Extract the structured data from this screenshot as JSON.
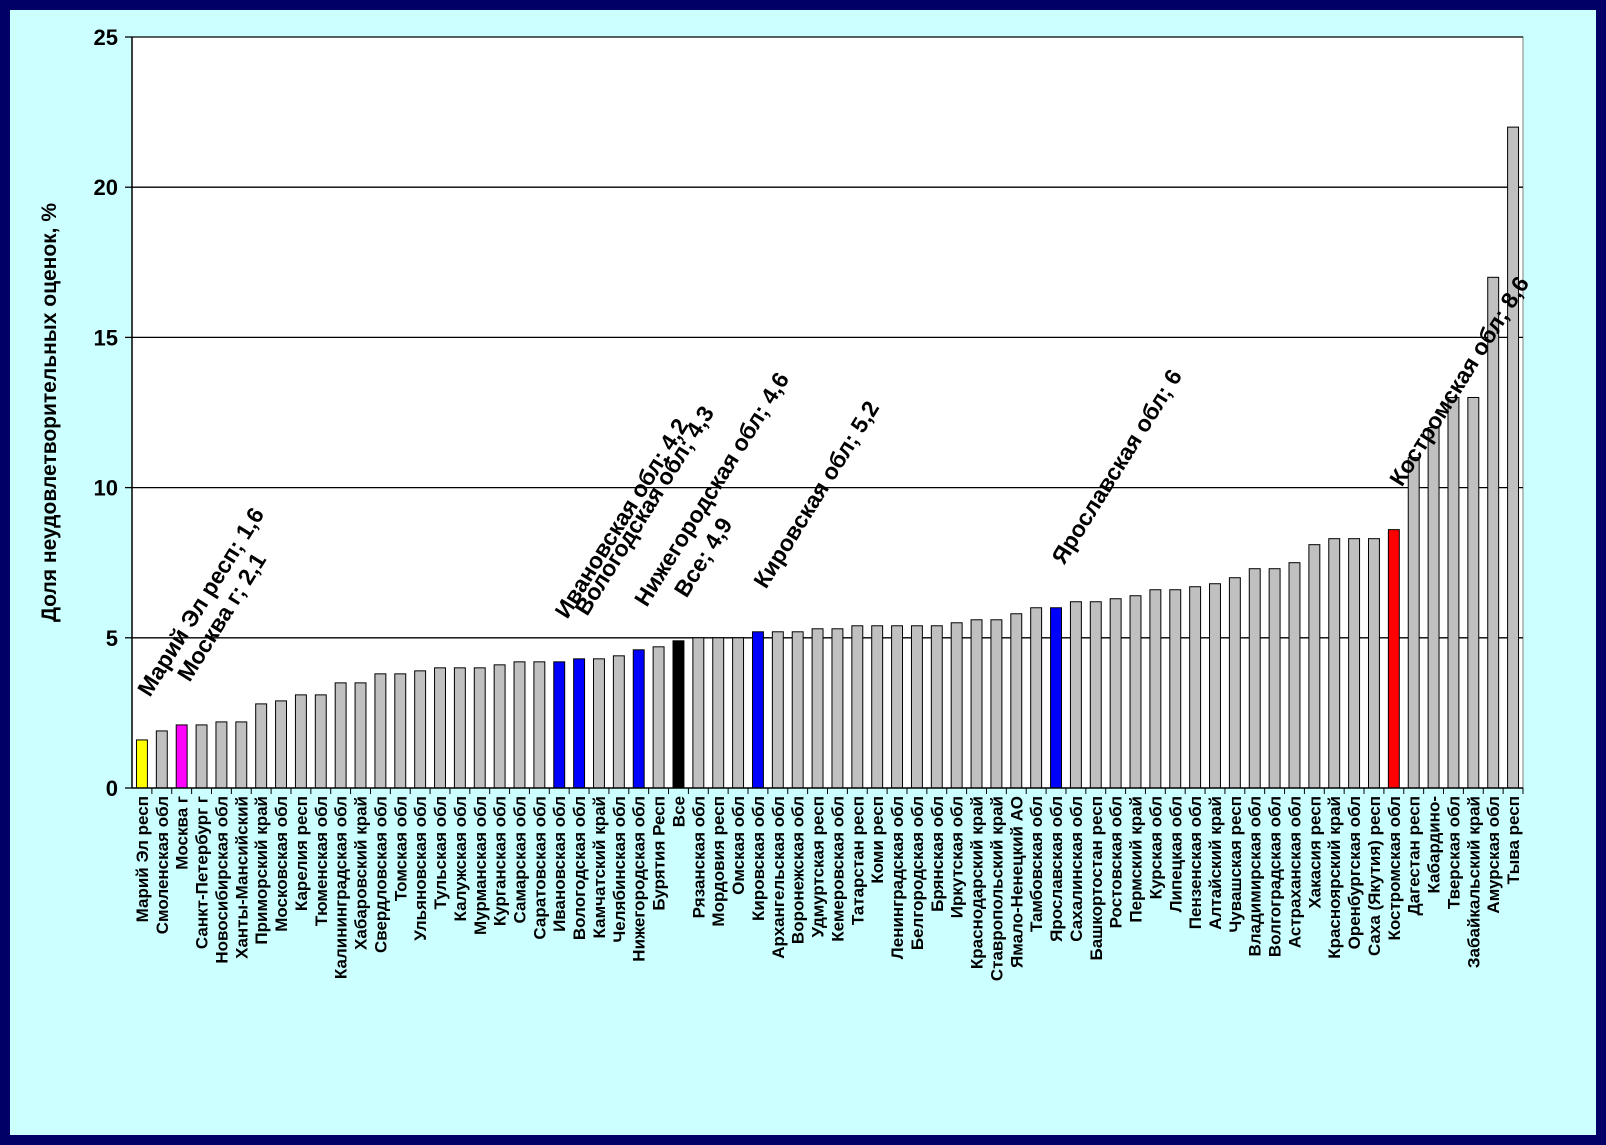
{
  "chart_data": {
    "type": "bar",
    "ylabel": "Доля неудовлетворительных оценок, %",
    "xlabel": "",
    "ylim": [
      0,
      25
    ],
    "yticks": [
      0,
      5,
      10,
      15,
      20,
      25
    ],
    "grid": true,
    "categories": [
      "Марий Эл респ",
      "Смоленская обл",
      "Москва г",
      "Санкт-Петербург г",
      "Новосибирская обл",
      "Ханты-Мансийский",
      "Приморский край",
      "Московская обл",
      "Карелия респ",
      "Тюменская обл",
      "Калининградская обл",
      "Хабаровский край",
      "Свердловская обл",
      "Томская обл",
      "Ульяновская обл",
      "Тульская обл",
      "Калужская обл",
      "Мурманская обл",
      "Курганская обл",
      "Самарская обл",
      "Саратовская обл",
      "Ивановская обл",
      "Вологодская обл",
      "Камчатский край",
      "Челябинская обл",
      "Нижегородская обл",
      "Бурятия Респ",
      "Все",
      "Рязанская обл",
      "Мордовия респ",
      "Омская обл",
      "Кировская обл",
      "Архангельская обл",
      "Воронежская обл",
      "Удмуртская респ",
      "Кемеровская обл",
      "Татарстан респ",
      "Коми респ",
      "Ленинградская обл",
      "Белгородская обл",
      "Брянская обл",
      "Иркутская обл",
      "Краснодарский край",
      "Ставропольский край",
      "Ямало-Ненецкий АО",
      "Тамбовская обл",
      "Ярославская обл",
      "Сахалинская обл",
      "Башкортостан респ",
      "Ростовская обл",
      "Пермский край",
      "Курская обл",
      "Липецкая обл",
      "Пензенская обл",
      "Алтайский край",
      "Чувашская респ",
      "Владимирская обл",
      "Волгоградская обл",
      "Астраханская обл",
      "Хакасия респ",
      "Красноярский край",
      "Оренбургская обл",
      "Саха (Якутия) респ",
      "Костромская обл",
      "Дагестан респ",
      "Кабардино-",
      "Тверская обл",
      "Забайкальский край",
      "Амурская обл",
      "Тыва респ"
    ],
    "values": [
      1.6,
      1.9,
      2.1,
      2.1,
      2.2,
      2.2,
      2.8,
      2.9,
      3.1,
      3.1,
      3.5,
      3.5,
      3.8,
      3.8,
      3.9,
      4.0,
      4.0,
      4.0,
      4.1,
      4.2,
      4.2,
      4.2,
      4.3,
      4.3,
      4.4,
      4.6,
      4.7,
      4.9,
      5.0,
      5.0,
      5.0,
      5.2,
      5.2,
      5.2,
      5.3,
      5.3,
      5.4,
      5.4,
      5.4,
      5.4,
      5.4,
      5.5,
      5.6,
      5.6,
      5.8,
      6.0,
      6.0,
      6.2,
      6.2,
      6.3,
      6.4,
      6.6,
      6.6,
      6.7,
      6.8,
      7.0,
      7.3,
      7.3,
      7.5,
      8.1,
      8.3,
      8.3,
      8.3,
      8.6,
      11.0,
      12.0,
      13.0,
      13.0,
      17.0,
      22.0
    ],
    "bar_colors": {
      "default": "#c0c0c0",
      "Марий Эл респ": "#ffff00",
      "Москва г": "#ff00ff",
      "Ивановская обл": "#0000ff",
      "Вологодская обл": "#0000ff",
      "Нижегородская обл": "#0000ff",
      "Все": "#000000",
      "Кировская обл": "#0000ff",
      "Ярославская обл": "#0000ff",
      "Костромская обл": "#ff0000"
    },
    "annotations": [
      {
        "category": "Марий Эл респ",
        "text": "Марий Эл респ; 1,6"
      },
      {
        "category": "Москва г",
        "text": "Москва г; 2,1"
      },
      {
        "category": "Ивановская обл",
        "text": "Ивановская обл; 4,2"
      },
      {
        "category": "Вологодская обл",
        "text": "Вологодская обл; 4,3"
      },
      {
        "category": "Нижегородская обл",
        "text": "Нижегородская обл; 4,6"
      },
      {
        "category": "Все",
        "text": "Все; 4,9"
      },
      {
        "category": "Кировская обл",
        "text": "Кировская обл; 5,2"
      },
      {
        "category": "Ярославская обл",
        "text": "Ярославская обл; 6"
      },
      {
        "category": "Костромская обл",
        "text": "Костромская обл; 8,6"
      }
    ],
    "colors": {
      "page_border": "#000066",
      "background": "#ccffff",
      "plot_area": "#ffffff",
      "gridline": "#000000"
    }
  }
}
